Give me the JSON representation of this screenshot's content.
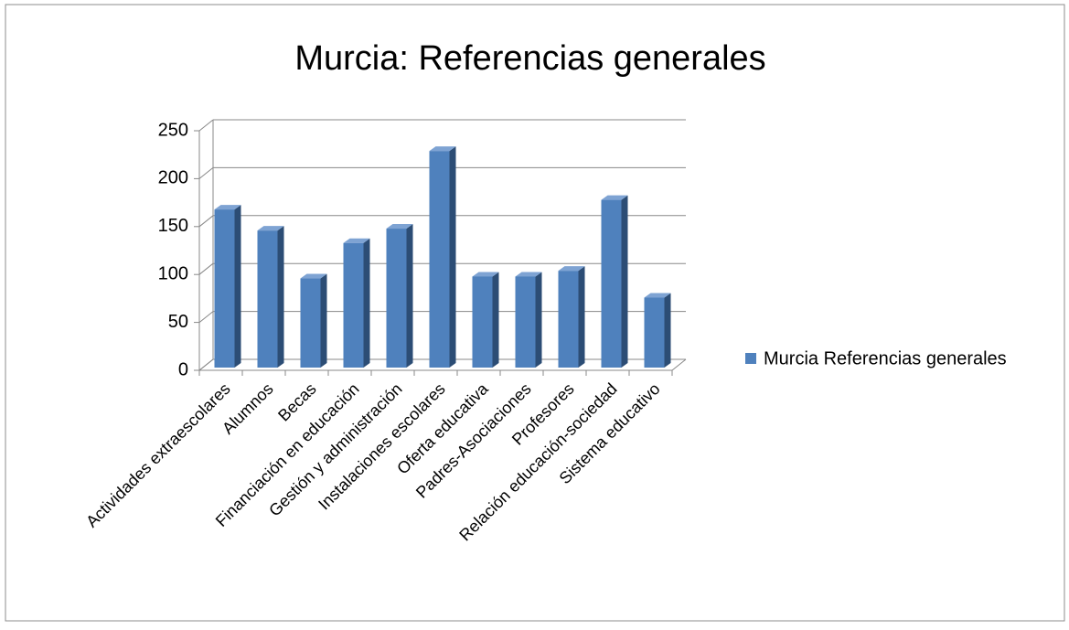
{
  "chart_data": {
    "type": "bar3d",
    "title": "Murcia: Referencias generales",
    "categories": [
      "Actividades extraescolares",
      "Alumnos",
      "Becas",
      "Financiación en educación",
      "Gestión y administración",
      "Instalaciones escolares",
      "Oferta educativa",
      "Padres-Asociaciones",
      "Profesores",
      "Relación educación-sociedad",
      "Sistema educativo"
    ],
    "series": [
      {
        "name": "Murcia Referencias generales",
        "color": "#4f81bd",
        "values": [
          165,
          143,
          93,
          130,
          145,
          226,
          95,
          95,
          101,
          175,
          73
        ]
      }
    ],
    "ylim": [
      0,
      250
    ],
    "yticks": [
      0,
      50,
      100,
      150,
      200,
      250
    ],
    "grid": true,
    "legend": "right"
  }
}
